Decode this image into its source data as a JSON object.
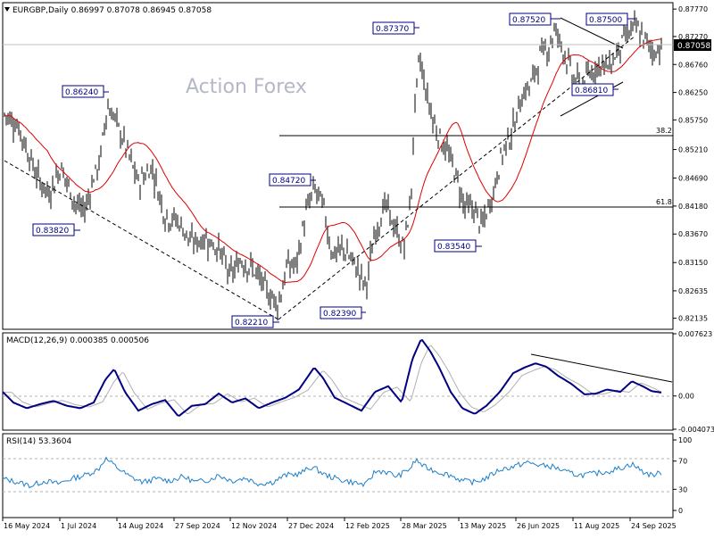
{
  "header": {
    "symbol_line": "EURGBP,Daily  0.86997 0.87078 0.86945 0.87058"
  },
  "watermark": "Action Forex",
  "colors": {
    "background": "#ffffff",
    "bars": "#000000",
    "ma": "#e00000",
    "macd": "#000080",
    "signal": "#b0b0b0",
    "rsi": "#1e7fc8",
    "level_line": "#000000",
    "label_border": "#000080",
    "label_text": "#000080"
  },
  "price_panel": {
    "current_price_label": "0.87058",
    "yticks": [
      "0.87770",
      "0.87270",
      "0.86760",
      "0.86250",
      "0.85750",
      "0.85210",
      "0.84690",
      "0.84180",
      "0.83670",
      "0.83150",
      "0.82635",
      "0.82135"
    ]
  },
  "fib_labels": {
    "f382": "38.2",
    "f618": "61.8"
  },
  "annotations": [
    {
      "label": "0.87370",
      "value": 0.8737
    },
    {
      "label": "0.87520",
      "value": 0.8752
    },
    {
      "label": "0.87500",
      "value": 0.875
    },
    {
      "label": "0.86240",
      "value": 0.8624
    },
    {
      "label": "0.84720",
      "value": 0.8472
    },
    {
      "label": "0.83820",
      "value": 0.8382
    },
    {
      "label": "0.83540",
      "value": 0.8354
    },
    {
      "label": "0.82390",
      "value": 0.8239
    },
    {
      "label": "0.82210",
      "value": 0.8221
    },
    {
      "label": "0.86810",
      "value": 0.8681
    }
  ],
  "macd_panel": {
    "title": "MACD(12,26,9) 0.000385 0.000506",
    "yticks": [
      "0.007623",
      "0.00",
      "-0.004073"
    ]
  },
  "rsi_panel": {
    "title": "RSI(14) 53.3604",
    "yticks": [
      "100",
      "70",
      "30",
      "0"
    ]
  },
  "x_axis": {
    "ticks": [
      "16 May 2024",
      "1 Jul 2024",
      "14 Aug 2024",
      "27 Sep 2024",
      "12 Nov 2024",
      "27 Dec 2024",
      "12 Feb 2025",
      "28 Mar 2025",
      "13 May 2025",
      "26 Jun 2025",
      "11 Aug 2025",
      "24 Sep 2025"
    ]
  },
  "chart_data": {
    "type": "line",
    "title": "EURGBP,Daily",
    "series": [
      {
        "name": "EURGBP",
        "x": [
          "2024-05-16",
          "2024-07-01",
          "2024-08-14",
          "2024-09-27",
          "2024-11-12",
          "2024-12-27",
          "2025-02-12",
          "2025-03-28",
          "2025-05-13",
          "2025-06-26",
          "2025-08-11",
          "2025-09-24"
        ],
        "values": [
          0.8595,
          0.8425,
          0.8585,
          0.835,
          0.8245,
          0.831,
          0.8355,
          0.853,
          0.84,
          0.858,
          0.865,
          0.869
        ]
      }
    ],
    "annotated_levels": [
      0.8737,
      0.8752,
      0.875,
      0.8624,
      0.8472,
      0.8382,
      0.8354,
      0.8239,
      0.8221,
      0.8681
    ],
    "fibonacci": {
      "38.2": 0.8545,
      "61.8": 0.8427
    },
    "ylim": [
      0.8195,
      0.8787
    ],
    "macd": {
      "values": [
        0.000385,
        0.000506
      ],
      "ylim": [
        -0.004073,
        0.007623
      ]
    },
    "rsi": {
      "value": 53.3604,
      "levels": [
        70,
        30
      ],
      "ylim": [
        0,
        100
      ]
    }
  }
}
